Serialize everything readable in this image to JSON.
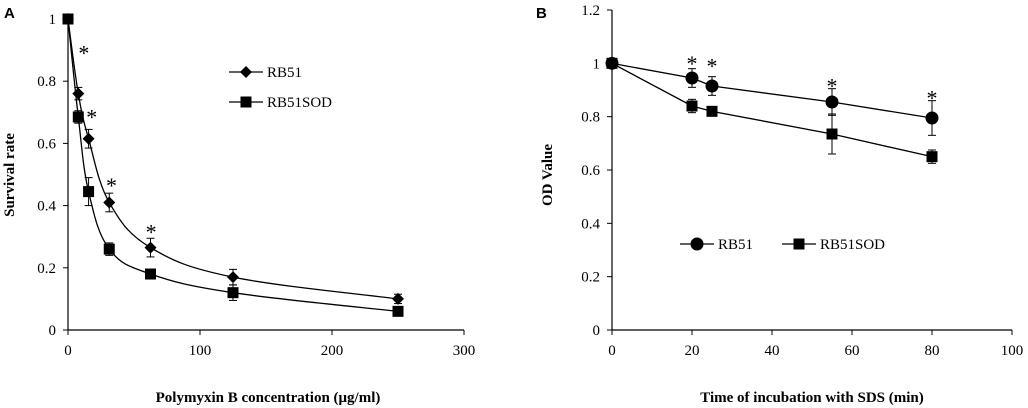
{
  "figure": {
    "background": "#ffffff",
    "ink": "#000000"
  },
  "chart_data": [
    {
      "panel": "A",
      "type": "line",
      "xlabel": "Polymyxin B concentration (μg/ml)",
      "ylabel": "Survival rate",
      "xlim": [
        0,
        300
      ],
      "ylim": [
        0,
        1
      ],
      "xticks": [
        "0",
        "100",
        "200",
        "300"
      ],
      "yticks": [
        "0",
        "0.2",
        "0.4",
        "0.6",
        "0.8",
        "1"
      ],
      "legend_position": "upper-middle",
      "series": [
        {
          "name": "RB51",
          "marker": "diamond",
          "x": [
            0,
            7.8,
            15.6,
            31.25,
            62.5,
            125,
            250
          ],
          "y": [
            1,
            0.76,
            0.615,
            0.41,
            0.265,
            0.17,
            0.1
          ],
          "error": [
            0,
            0.02,
            0.03,
            0.03,
            0.03,
            0.025,
            0.015
          ]
        },
        {
          "name": "RB51SOD",
          "marker": "square",
          "x": [
            0,
            7.8,
            15.6,
            31.25,
            62.5,
            125,
            250
          ],
          "y": [
            1,
            0.685,
            0.445,
            0.26,
            0.18,
            0.12,
            0.06
          ],
          "error": [
            0,
            0.02,
            0.045,
            0.02,
            0.01,
            0.025,
            0.015
          ]
        }
      ],
      "annotations": [
        {
          "text": "*",
          "x": 12,
          "y": 0.895
        },
        {
          "text": "*",
          "x": 18,
          "y": 0.69
        },
        {
          "text": "*",
          "x": 33,
          "y": 0.47
        },
        {
          "text": "*",
          "x": 63,
          "y": 0.32
        }
      ]
    },
    {
      "panel": "B",
      "type": "line",
      "xlabel": "Time of incubation with SDS (min)",
      "ylabel": "OD Value",
      "xlim": [
        0,
        100
      ],
      "ylim": [
        0,
        1.2
      ],
      "xticks": [
        "0",
        "20",
        "40",
        "60",
        "80",
        "100"
      ],
      "yticks": [
        "0",
        "0.2",
        "0.4",
        "0.6",
        "0.8",
        "1",
        "1.2"
      ],
      "legend_position": "bottom-middle",
      "series": [
        {
          "name": "RB51",
          "marker": "circle",
          "x": [
            0,
            20,
            25,
            55,
            80
          ],
          "y": [
            1,
            0.945,
            0.915,
            0.855,
            0.795
          ],
          "error": [
            0,
            0.035,
            0.035,
            0.05,
            0.065
          ]
        },
        {
          "name": "RB51SOD",
          "marker": "square",
          "x": [
            0,
            20,
            25,
            55,
            80
          ],
          "y": [
            1,
            0.84,
            0.82,
            0.735,
            0.65
          ],
          "error": [
            0,
            0.025,
            0.01,
            0.075,
            0.025
          ]
        }
      ],
      "annotations": [
        {
          "text": "*",
          "x": 20,
          "y": 1.005
        },
        {
          "text": "*",
          "x": 25,
          "y": 0.995
        },
        {
          "text": "*",
          "x": 55,
          "y": 0.92
        },
        {
          "text": "*",
          "x": 80,
          "y": 0.875
        }
      ]
    }
  ]
}
